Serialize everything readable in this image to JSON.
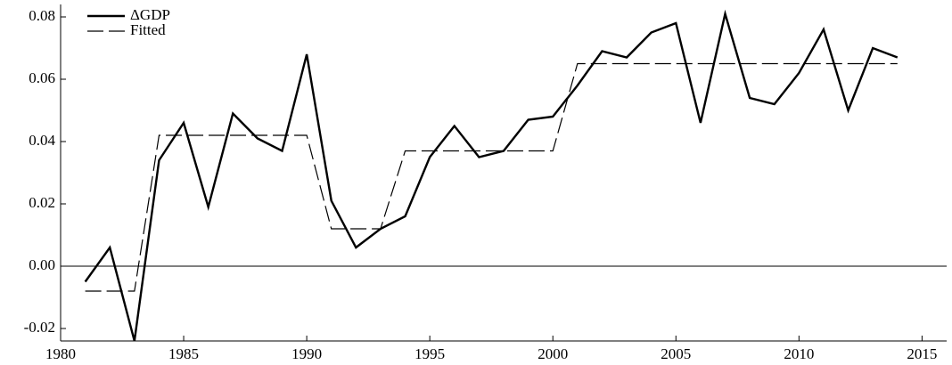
{
  "chart_data": {
    "type": "line",
    "x": [
      1981,
      1982,
      1983,
      1984,
      1985,
      1986,
      1987,
      1988,
      1989,
      1990,
      1991,
      1992,
      1993,
      1994,
      1995,
      1996,
      1997,
      1998,
      1999,
      2000,
      2001,
      2002,
      2003,
      2004,
      2005,
      2006,
      2007,
      2008,
      2009,
      2010,
      2011,
      2012,
      2013,
      2014
    ],
    "series": [
      {
        "name": "ΔGDP",
        "color": "#000000",
        "style": "solid",
        "values": [
          -0.005,
          0.006,
          -0.024,
          0.034,
          0.046,
          0.019,
          0.049,
          0.041,
          0.037,
          0.068,
          0.021,
          0.006,
          0.012,
          0.016,
          0.035,
          0.045,
          0.035,
          0.037,
          0.047,
          0.048,
          0.058,
          0.069,
          0.067,
          0.075,
          0.078,
          0.046,
          0.081,
          0.054,
          0.052,
          0.062,
          0.076,
          0.05,
          0.07,
          0.067
        ]
      },
      {
        "name": "Fitted",
        "color": "#000000",
        "style": "dashed",
        "values": [
          -0.008,
          -0.008,
          -0.008,
          0.042,
          0.042,
          0.042,
          0.042,
          0.042,
          0.042,
          0.042,
          0.012,
          0.012,
          0.012,
          0.037,
          0.037,
          0.037,
          0.037,
          0.037,
          0.037,
          0.037,
          0.065,
          0.065,
          0.065,
          0.065,
          0.065,
          0.065,
          0.065,
          0.065,
          0.065,
          0.065,
          0.065,
          0.065,
          0.065,
          0.065
        ]
      }
    ],
    "xlim": [
      1980,
      2016
    ],
    "xticks": [
      1980,
      1985,
      1990,
      1995,
      2000,
      2005,
      2010,
      2015
    ],
    "ylim": [
      -0.024,
      0.084
    ],
    "yticks": [
      {
        "value": -0.02,
        "label": "-0.02"
      },
      {
        "value": 0,
        "label": "0.00"
      },
      {
        "value": 0.02,
        "label": "0.02"
      },
      {
        "value": 0.04,
        "label": "0.04"
      },
      {
        "value": 0.06,
        "label": "0.06"
      },
      {
        "value": 0.08,
        "label": "0.08"
      }
    ],
    "zero_line": true,
    "legend": "upper-left"
  }
}
